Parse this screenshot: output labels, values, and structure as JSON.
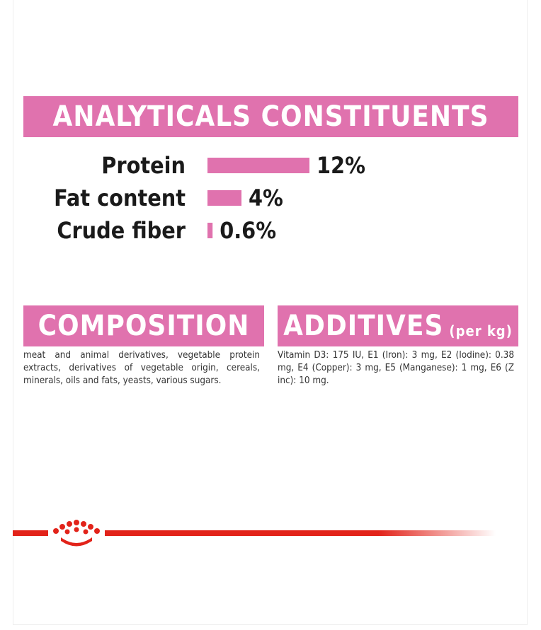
{
  "chart_data": {
    "type": "bar",
    "orientation": "horizontal",
    "title": "ANALYTICALS CONSTITUENTS",
    "categories": [
      "Protein",
      "Fat content",
      "Crude fiber"
    ],
    "values": [
      12,
      4,
      0.6
    ],
    "value_labels": [
      "12%",
      "4%",
      "0.6%"
    ],
    "color": "#e072ae"
  },
  "composition": {
    "title": "COMPOSITION",
    "text": "meat and animal derivatives, vegetable protein extracts, derivatives of vegetable origin, cereals, minerals, oils and fats, yeasts, various sugars."
  },
  "additives": {
    "title": "ADDITIVES",
    "unit": "(per kg)",
    "text": "Vitamin D3: 175 IU, E1 (Iron): 3 mg, E2 (Iodine): 0.38 mg, E4 (Copper): 3 mg, E5 (Manganese): 1 mg, E6 (Z inc): 10 mg."
  }
}
